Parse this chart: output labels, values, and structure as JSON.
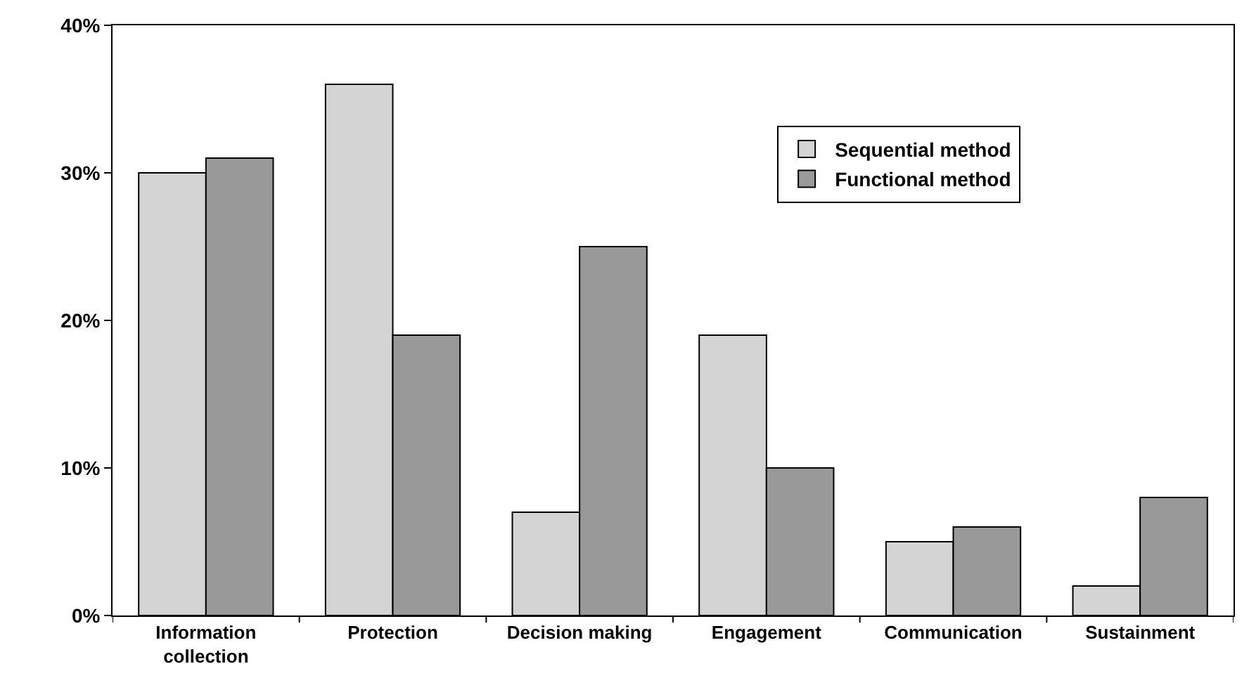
{
  "chart_data": {
    "type": "bar",
    "categories": [
      "Information collection",
      "Protection",
      "Decision making",
      "Engagement",
      "Communication",
      "Sustainment"
    ],
    "series": [
      {
        "name": "Sequential method",
        "color": "#d4d4d4",
        "values": [
          30,
          36,
          7,
          19,
          5,
          2
        ]
      },
      {
        "name": "Functional method",
        "color": "#999999",
        "values": [
          31,
          19,
          25,
          10,
          6,
          8
        ]
      }
    ],
    "ylim": [
      0,
      40
    ],
    "yticks": [
      {
        "value": 0,
        "label": "0%"
      },
      {
        "value": 10,
        "label": "10%"
      },
      {
        "value": 20,
        "label": "20%"
      },
      {
        "value": 30,
        "label": "30%"
      },
      {
        "value": 40,
        "label": "40%"
      }
    ],
    "legend": "top right"
  }
}
